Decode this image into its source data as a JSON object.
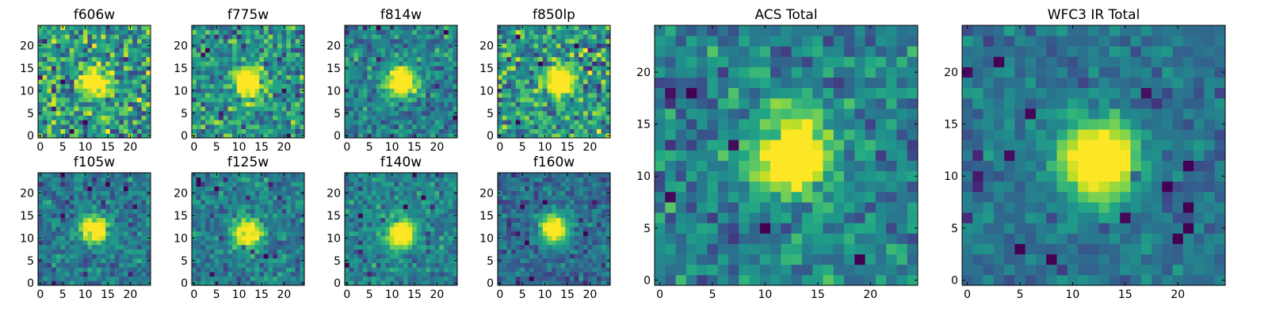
{
  "figure": {
    "description_free": true
  },
  "chart_data": [
    {
      "type": "heatmap",
      "title": "f606w",
      "grid_size": 25,
      "xlim": [
        0,
        24
      ],
      "ylim": [
        0,
        24
      ],
      "xticks": [
        0,
        5,
        10,
        15,
        20
      ],
      "yticks": [
        0,
        5,
        10,
        15,
        20
      ],
      "colormap": "viridis",
      "source_center": [
        12,
        12
      ],
      "peak_relative": 0.35,
      "noise_level": 0.55,
      "background_level": 0.55
    },
    {
      "type": "heatmap",
      "title": "f775w",
      "grid_size": 25,
      "xlim": [
        0,
        24
      ],
      "ylim": [
        0,
        24
      ],
      "xticks": [
        0,
        5,
        10,
        15,
        20
      ],
      "yticks": [
        0,
        5,
        10,
        15,
        20
      ],
      "colormap": "viridis",
      "source_center": [
        12,
        12
      ],
      "peak_relative": 0.55,
      "noise_level": 0.45,
      "background_level": 0.5
    },
    {
      "type": "heatmap",
      "title": "f814w",
      "grid_size": 25,
      "xlim": [
        0,
        24
      ],
      "ylim": [
        0,
        24
      ],
      "xticks": [
        0,
        5,
        10,
        15,
        20
      ],
      "yticks": [
        0,
        5,
        10,
        15,
        20
      ],
      "colormap": "viridis",
      "source_center": [
        12,
        12
      ],
      "peak_relative": 0.6,
      "noise_level": 0.35,
      "background_level": 0.45
    },
    {
      "type": "heatmap",
      "title": "f850lp",
      "grid_size": 25,
      "xlim": [
        0,
        24
      ],
      "ylim": [
        0,
        24
      ],
      "xticks": [
        0,
        5,
        10,
        15,
        20
      ],
      "yticks": [
        0,
        5,
        10,
        15,
        20
      ],
      "colormap": "viridis",
      "source_center": [
        13,
        12
      ],
      "peak_relative": 0.45,
      "noise_level": 0.5,
      "background_level": 0.55
    },
    {
      "type": "heatmap",
      "title": "f105w",
      "grid_size": 25,
      "xlim": [
        0,
        24
      ],
      "ylim": [
        0,
        24
      ],
      "xticks": [
        0,
        5,
        10,
        15,
        20
      ],
      "yticks": [
        0,
        5,
        10,
        15,
        20
      ],
      "colormap": "viridis",
      "source_center": [
        12,
        12
      ],
      "peak_relative": 0.65,
      "noise_level": 0.3,
      "background_level": 0.4
    },
    {
      "type": "heatmap",
      "title": "f125w",
      "grid_size": 25,
      "xlim": [
        0,
        24
      ],
      "ylim": [
        0,
        24
      ],
      "xticks": [
        0,
        5,
        10,
        15,
        20
      ],
      "yticks": [
        0,
        5,
        10,
        15,
        20
      ],
      "colormap": "viridis",
      "source_center": [
        12,
        11
      ],
      "peak_relative": 0.55,
      "noise_level": 0.3,
      "background_level": 0.42
    },
    {
      "type": "heatmap",
      "title": "f140w",
      "grid_size": 25,
      "xlim": [
        0,
        24
      ],
      "ylim": [
        0,
        24
      ],
      "xticks": [
        0,
        5,
        10,
        15,
        20
      ],
      "yticks": [
        0,
        5,
        10,
        15,
        20
      ],
      "colormap": "viridis",
      "source_center": [
        12,
        11
      ],
      "peak_relative": 0.55,
      "noise_level": 0.28,
      "background_level": 0.45
    },
    {
      "type": "heatmap",
      "title": "f160w",
      "grid_size": 25,
      "xlim": [
        0,
        24
      ],
      "ylim": [
        0,
        24
      ],
      "xticks": [
        0,
        5,
        10,
        15,
        20
      ],
      "yticks": [
        0,
        5,
        10,
        15,
        20
      ],
      "colormap": "viridis",
      "source_center": [
        12,
        12
      ],
      "peak_relative": 0.6,
      "noise_level": 0.28,
      "background_level": 0.35
    },
    {
      "type": "heatmap",
      "title": "ACS Total",
      "grid_size": 25,
      "xlim": [
        0,
        24
      ],
      "ylim": [
        0,
        24
      ],
      "xticks": [
        0,
        5,
        10,
        15,
        20
      ],
      "yticks": [
        0,
        5,
        10,
        15,
        20
      ],
      "colormap": "viridis",
      "source_center": [
        12.5,
        12
      ],
      "peak_relative": 0.55,
      "noise_level": 0.35,
      "background_level": 0.45
    },
    {
      "type": "heatmap",
      "title": "WFC3 IR Total",
      "grid_size": 25,
      "xlim": [
        0,
        24
      ],
      "ylim": [
        0,
        24
      ],
      "xticks": [
        0,
        5,
        10,
        15,
        20
      ],
      "yticks": [
        0,
        5,
        10,
        15,
        20
      ],
      "colormap": "viridis",
      "source_center": [
        12.5,
        11.5
      ],
      "peak_relative": 0.65,
      "noise_level": 0.22,
      "background_level": 0.38
    }
  ]
}
